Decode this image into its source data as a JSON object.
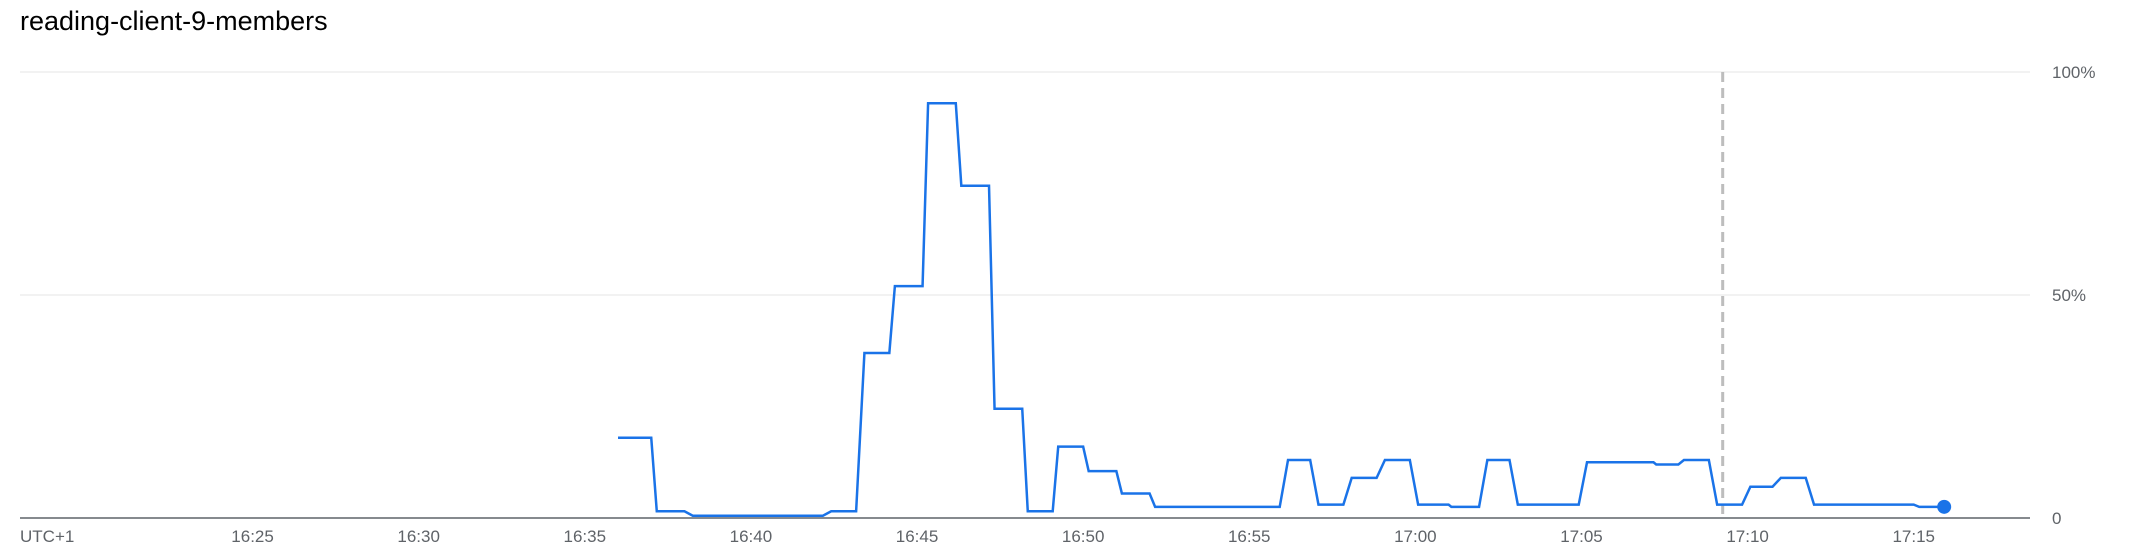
{
  "chart_data": {
    "type": "line",
    "title": "reading-client-9-members",
    "timezone_label": "UTC+1",
    "x_ticks": [
      "16:25",
      "16:30",
      "16:35",
      "16:40",
      "16:45",
      "16:50",
      "16:55",
      "17:00",
      "17:05",
      "17:10",
      "17:15"
    ],
    "y_ticks": [
      "0",
      "50%",
      "100%"
    ],
    "xlim": [
      "16:18:00",
      "17:18:30"
    ],
    "ylim": [
      0,
      100
    ],
    "grid": true,
    "marker_time": "17:09:15",
    "last_point_marker": true,
    "series": [
      {
        "color": "#1a73e8",
        "points": [
          [
            "16:36:00",
            18
          ],
          [
            "16:37:00",
            18
          ],
          [
            "16:37:10",
            1.5
          ],
          [
            "16:38:00",
            1.5
          ],
          [
            "16:38:15",
            0.5
          ],
          [
            "16:42:10",
            0.5
          ],
          [
            "16:42:25",
            1.5
          ],
          [
            "16:43:10",
            1.5
          ],
          [
            "16:43:25",
            37
          ],
          [
            "16:44:10",
            37
          ],
          [
            "16:44:20",
            52
          ],
          [
            "16:45:10",
            52
          ],
          [
            "16:45:20",
            93
          ],
          [
            "16:46:10",
            93
          ],
          [
            "16:46:20",
            74.5
          ],
          [
            "16:47:10",
            74.5
          ],
          [
            "16:47:20",
            24.5
          ],
          [
            "16:48:10",
            24.5
          ],
          [
            "16:48:20",
            1.5
          ],
          [
            "16:49:05",
            1.5
          ],
          [
            "16:49:15",
            16
          ],
          [
            "16:50:00",
            16
          ],
          [
            "16:50:10",
            10.5
          ],
          [
            "16:51:00",
            10.5
          ],
          [
            "16:51:10",
            5.5
          ],
          [
            "16:52:00",
            5.5
          ],
          [
            "16:52:10",
            2.5
          ],
          [
            "16:55:55",
            2.5
          ],
          [
            "16:56:10",
            13
          ],
          [
            "16:56:50",
            13
          ],
          [
            "16:57:05",
            3
          ],
          [
            "16:57:50",
            3
          ],
          [
            "16:58:05",
            9
          ],
          [
            "16:58:50",
            9
          ],
          [
            "16:59:05",
            13
          ],
          [
            "16:59:50",
            13
          ],
          [
            "17:00:05",
            3
          ],
          [
            "17:01:00",
            3
          ],
          [
            "17:01:05",
            2.5
          ],
          [
            "17:01:55",
            2.5
          ],
          [
            "17:02:10",
            13
          ],
          [
            "17:02:50",
            13
          ],
          [
            "17:03:05",
            3
          ],
          [
            "17:04:55",
            3
          ],
          [
            "17:05:10",
            12.5
          ],
          [
            "17:07:10",
            12.5
          ],
          [
            "17:07:15",
            12
          ],
          [
            "17:07:55",
            12
          ],
          [
            "17:08:05",
            13
          ],
          [
            "17:08:50",
            13
          ],
          [
            "17:09:05",
            3
          ],
          [
            "17:09:50",
            3
          ],
          [
            "17:10:05",
            7
          ],
          [
            "17:10:45",
            7
          ],
          [
            "17:11:00",
            9
          ],
          [
            "17:11:45",
            9
          ],
          [
            "17:12:00",
            3
          ],
          [
            "17:15:00",
            3
          ],
          [
            "17:15:10",
            2.5
          ],
          [
            "17:15:55",
            2.5
          ]
        ]
      }
    ]
  }
}
